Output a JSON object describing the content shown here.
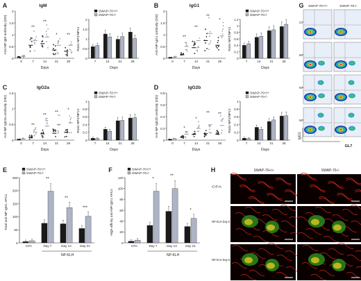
{
  "colors": {
    "wt": "#1a1a1a",
    "ko": "#aeb4c6",
    "ko_dot": "#9aa0b0",
    "axis": "#222222",
    "flow_bg": "#e9eff9"
  },
  "legend": {
    "wt": "SWAP-70+/+",
    "ko": "SWAP-70-/-"
  },
  "panels": [
    {
      "letter": "A",
      "title": "IgM"
    },
    {
      "letter": "B",
      "title": "IgG1"
    },
    {
      "letter": "C",
      "title": "IgG2a"
    },
    {
      "letter": "D",
      "title": "IgG2b"
    },
    {
      "letter": "E",
      "title": ""
    },
    {
      "letter": "F",
      "title": ""
    },
    {
      "letter": "G",
      "title": ""
    },
    {
      "letter": "H",
      "title": ""
    }
  ],
  "days_label": "Days",
  "day_ticks": [
    "0",
    "7",
    "14",
    "21",
    "28"
  ],
  "bar_day_ticks": [
    "7",
    "14",
    "21",
    "28"
  ],
  "ratio_ylabel": "Ratio NP2/NP12",
  "scatter_ylabels": {
    "A": "Anti-NP IgM antibody (OD)",
    "B": "Anti-NP IgG1 antibody (OD)",
    "C": "Anti-NP IgG2a antibody (OD)",
    "D": "Anti-NP IgG2b antibody (OD)"
  },
  "e_ylabel": "Total anti-NP IgG1 AFCs",
  "f_ylabel": "High-affinity anti-NP IgG1 AFCs",
  "e_f_categories": [
    "CFA",
    "Day 7",
    "Day 14",
    "Day 21"
  ],
  "np_klh": "NP-KLH",
  "g": {
    "col_headers": [
      "SWAP-70+/+",
      "SWAP-70-/-"
    ],
    "row_labels": [
      "CFA",
      "NP-KLH day 4",
      "NP-KLH day 6",
      "NP-KLH day 10"
    ],
    "x_axis": "GL7",
    "y_axis": "IgG1"
  },
  "h": {
    "col_headers": [
      "SWAP-70+/+",
      "SWAP-70-/-"
    ],
    "row_labels": [
      "CFA",
      "NP-KLH Day 6",
      "NP-KLH Day 6"
    ]
  },
  "chart_data": [
    {
      "panel": "A-ratio",
      "type": "bar",
      "categories": [
        "7",
        "14",
        "21",
        "28"
      ],
      "ylim": [
        0,
        2
      ],
      "yticks": [
        "0",
        "0.5",
        "1",
        "1.5",
        "2"
      ],
      "series": [
        {
          "name": "SWAP-70+/+",
          "values": [
            0.6,
            1.25,
            0.98,
            1.35
          ]
        },
        {
          "name": "SWAP-70-/-",
          "values": [
            0.66,
            1.1,
            1.12,
            1.02
          ]
        }
      ]
    },
    {
      "panel": "B-ratio",
      "type": "bar",
      "categories": [
        "7",
        "14",
        "21",
        "28"
      ],
      "ylim": [
        0,
        1.2
      ],
      "yticks": [
        "0",
        "0.2",
        "0.4",
        "0.6",
        "0.8",
        "1",
        "1.2"
      ],
      "series": [
        {
          "name": "SWAP-70+/+",
          "values": [
            0.4,
            0.65,
            0.85,
            0.98
          ]
        },
        {
          "name": "SWAP-70-/-",
          "values": [
            0.45,
            0.68,
            0.88,
            1.05
          ]
        }
      ]
    },
    {
      "panel": "C-ratio",
      "type": "bar",
      "categories": [
        "7",
        "14",
        "21",
        "28"
      ],
      "ylim": [
        0,
        1
      ],
      "yticks": [
        "0",
        "0.2",
        "0.4",
        "0.6",
        "0.8",
        "1"
      ],
      "series": [
        {
          "name": "SWAP-70+/+",
          "values": [
            0.05,
            0.28,
            0.5,
            0.57
          ]
        },
        {
          "name": "SWAP-70-/-",
          "values": [
            0.04,
            0.23,
            0.51,
            0.58
          ]
        }
      ]
    },
    {
      "panel": "D-ratio",
      "type": "bar",
      "categories": [
        "7",
        "14",
        "21",
        "28"
      ],
      "ylim": [
        0,
        1
      ],
      "yticks": [
        "0",
        "0.2",
        "0.4",
        "0.6",
        "0.8",
        "1"
      ],
      "series": [
        {
          "name": "SWAP-70+/+",
          "values": [
            0.05,
            0.33,
            0.48,
            0.62
          ]
        },
        {
          "name": "SWAP-70-/-",
          "values": [
            0.04,
            0.28,
            0.52,
            0.63
          ]
        }
      ]
    },
    {
      "panel": "A-scatter",
      "type": "scatter",
      "x": [
        "0",
        "7",
        "14",
        "21",
        "28"
      ],
      "ylim": [
        0,
        2
      ],
      "yticks": [
        "0",
        "0.5",
        "1",
        "1.5",
        "2"
      ],
      "wt_mean": [
        0.05,
        0.55,
        0.62,
        0.35,
        0.3
      ],
      "ko_mean": [
        0.08,
        0.75,
        0.9,
        0.55,
        0.55
      ],
      "sig": [
        "",
        "**",
        "**",
        "*",
        "**"
      ]
    },
    {
      "panel": "B-scatter",
      "type": "scatter",
      "x": [
        "0",
        "7",
        "14",
        "21",
        "28"
      ],
      "ylim": [
        0,
        2
      ],
      "yticks": [
        "0",
        "0.5",
        "1",
        "1.5",
        "2"
      ],
      "wt_mean": [
        0.02,
        0.15,
        0.45,
        0.75,
        0.55
      ],
      "ko_mean": [
        0.05,
        0.5,
        0.75,
        1.05,
        0.95
      ],
      "sig": [
        "",
        "**",
        "**",
        "**",
        "*"
      ]
    },
    {
      "panel": "C-scatter",
      "type": "scatter",
      "x": [
        "0",
        "7",
        "14",
        "21",
        "28"
      ],
      "ylim": [
        0,
        1.5
      ],
      "yticks": [
        "0",
        "0.5",
        "1",
        "1.5"
      ],
      "wt_mean": [
        0.02,
        0.1,
        0.2,
        0.22,
        0.25
      ],
      "ko_mean": [
        0.04,
        0.25,
        0.45,
        0.5,
        0.55
      ],
      "sig": [
        "",
        "**",
        "**",
        "**",
        "*"
      ]
    },
    {
      "panel": "D-scatter",
      "type": "scatter",
      "x": [
        "0",
        "7",
        "14",
        "21",
        "28"
      ],
      "ylim": [
        0,
        0.8
      ],
      "yticks": [
        "0",
        "0.2",
        "0.4",
        "0.6",
        "0.8"
      ],
      "wt_mean": [
        0.01,
        0.05,
        0.1,
        0.11,
        0.1
      ],
      "ko_mean": [
        0.02,
        0.1,
        0.2,
        0.26,
        0.25
      ],
      "sig": [
        "",
        "*",
        "*",
        "**",
        "**"
      ]
    },
    {
      "panel": "E",
      "type": "bar",
      "categories": [
        "CFA",
        "Day 7",
        "Day 14",
        "Day 21"
      ],
      "ylim": [
        0,
        250
      ],
      "yticks": [
        "0",
        "50",
        "100",
        "150",
        "200",
        "250"
      ],
      "series": [
        {
          "name": "SWAP-70+/+",
          "values": [
            5,
            75,
            73,
            55
          ]
        },
        {
          "name": "SWAP-70-/-",
          "values": [
            8,
            198,
            135,
            102
          ]
        }
      ],
      "sig": [
        "",
        "**",
        "**",
        "***"
      ]
    },
    {
      "panel": "F",
      "type": "bar",
      "categories": [
        "CFA",
        "Day 7",
        "Day 14",
        "Day 21"
      ],
      "ylim": [
        0,
        120
      ],
      "yticks": [
        "0",
        "20",
        "40",
        "60",
        "80",
        "100",
        "120"
      ],
      "series": [
        {
          "name": "SWAP-70+/+",
          "values": [
            3,
            32,
            58,
            30
          ]
        },
        {
          "name": "SWAP-70-/-",
          "values": [
            5,
            95,
            100,
            45
          ]
        }
      ],
      "sig": [
        "",
        "*",
        "**",
        "*"
      ]
    }
  ]
}
